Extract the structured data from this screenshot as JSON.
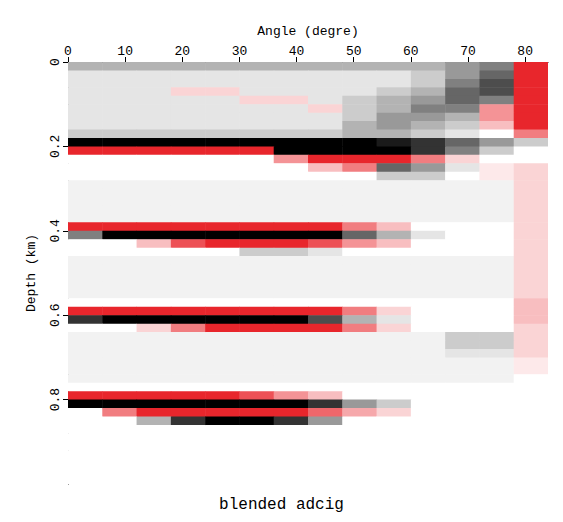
{
  "chart_data": {
    "type": "heatmap",
    "title": "blended adcig",
    "x_label": "Angle (degre)",
    "y_label": "Depth (km)",
    "xlim": [
      0,
      84
    ],
    "xticks": [
      0,
      10,
      20,
      30,
      40,
      50,
      60,
      70,
      80
    ],
    "ylim": [
      0,
      1
    ],
    "yticks": [
      0,
      0.2,
      0.4,
      0.6,
      0.8
    ],
    "grid": false,
    "color_range": [
      -1,
      1
    ],
    "x": [
      3,
      9,
      15,
      21,
      27,
      33,
      39,
      45,
      51,
      57,
      63,
      69,
      75,
      81
    ],
    "y": [
      0.01,
      0.03,
      0.05,
      0.07,
      0.09,
      0.11,
      0.13,
      0.15,
      0.17,
      0.19,
      0.21,
      0.23,
      0.25,
      0.27,
      0.29,
      0.31,
      0.33,
      0.35,
      0.37,
      0.39,
      0.41,
      0.43,
      0.45,
      0.47,
      0.49,
      0.51,
      0.53,
      0.55,
      0.57,
      0.59,
      0.61,
      0.63,
      0.65,
      0.67,
      0.69,
      0.71,
      0.73,
      0.75,
      0.77,
      0.79,
      0.81,
      0.83,
      0.85,
      0.87,
      0.89,
      0.91,
      0.93,
      0.95,
      0.97,
      0.99
    ],
    "cells": [
      [
        0.3,
        0.3,
        0.3,
        0.3,
        0.3,
        0.3,
        0.3,
        0.3,
        0.3,
        0.3,
        0.3,
        0.4,
        0.5,
        -1
      ],
      [
        0.1,
        0.1,
        0.1,
        0.1,
        0.1,
        0.1,
        0.1,
        0.1,
        0.1,
        0.1,
        0.2,
        0.4,
        0.6,
        -1
      ],
      [
        0.1,
        0.1,
        0.1,
        0.1,
        0.1,
        0.1,
        0.1,
        0.1,
        0.1,
        0.1,
        0.2,
        0.5,
        0.7,
        -1
      ],
      [
        0.1,
        0.1,
        0.1,
        -0.2,
        -0.2,
        0.1,
        0.1,
        0.1,
        0.1,
        0.2,
        0.3,
        0.6,
        0.7,
        -1
      ],
      [
        0.1,
        0.1,
        0.1,
        0.1,
        0.1,
        -0.2,
        -0.2,
        0.1,
        0.2,
        0.3,
        0.4,
        0.6,
        0.5,
        -1
      ],
      [
        0.1,
        0.1,
        0.1,
        0.1,
        0.1,
        0.1,
        0.1,
        -0.2,
        0.2,
        0.3,
        0.5,
        0.5,
        -0.5,
        -1
      ],
      [
        0.1,
        0.1,
        0.1,
        0.1,
        0.1,
        0.1,
        0.1,
        0.1,
        0.2,
        0.4,
        0.4,
        0.3,
        -0.5,
        -1
      ],
      [
        0.1,
        0.1,
        0.1,
        0.1,
        0.1,
        0.1,
        0.1,
        0.1,
        0.3,
        0.4,
        0.3,
        0.2,
        -0.3,
        -1
      ],
      [
        0.2,
        0.2,
        0.2,
        0.2,
        0.2,
        0.2,
        0.2,
        0.2,
        0.3,
        0.3,
        0.2,
        0.1,
        0,
        -0.6
      ],
      [
        1,
        1,
        1,
        1,
        1,
        1,
        1,
        1,
        1,
        0.9,
        0.8,
        0.6,
        0.4,
        0.2
      ],
      [
        -1,
        -1,
        -1,
        -1,
        -1,
        -1,
        1,
        1,
        1,
        1,
        0.8,
        0.5,
        0.2,
        0
      ],
      [
        0,
        0,
        0,
        0,
        0,
        0,
        -0.5,
        -1,
        -1,
        -1,
        -0.6,
        -0.2,
        0,
        0
      ],
      [
        0,
        0,
        0,
        0,
        0,
        0,
        0,
        -0.3,
        -0.6,
        0.6,
        0.4,
        0.1,
        -0.1,
        -0.2
      ],
      [
        0,
        0,
        0,
        0,
        0,
        0,
        0,
        0,
        0,
        0.2,
        0.2,
        0,
        -0.1,
        -0.2
      ],
      [
        0.05,
        0.05,
        0.05,
        0.05,
        0.05,
        0.05,
        0.05,
        0.05,
        0.05,
        0.05,
        0.05,
        0.05,
        0.05,
        -0.2
      ],
      [
        0.05,
        0.05,
        0.05,
        0.05,
        0.05,
        0.05,
        0.05,
        0.05,
        0.05,
        0.05,
        0.05,
        0.05,
        0.05,
        -0.2
      ],
      [
        0.05,
        0.05,
        0.05,
        0.05,
        0.05,
        0.05,
        0.05,
        0.05,
        0.05,
        0.05,
        0.05,
        0.05,
        0.05,
        -0.2
      ],
      [
        0.05,
        0.05,
        0.05,
        0.05,
        0.05,
        0.05,
        0.05,
        0.05,
        0.05,
        0.05,
        0.05,
        0.05,
        0.05,
        -0.2
      ],
      [
        0.05,
        0.05,
        0.05,
        0.05,
        0.05,
        0.05,
        0.05,
        0.05,
        0.05,
        0.05,
        0.05,
        0.05,
        0.05,
        -0.2
      ],
      [
        -1,
        -1,
        -1,
        -1,
        -1,
        -1,
        -1,
        -1,
        -0.6,
        -0.3,
        0,
        0,
        0,
        -0.2
      ],
      [
        0.5,
        1,
        1,
        1,
        1,
        1,
        1,
        1,
        0.6,
        0.3,
        0.1,
        0,
        0,
        -0.2
      ],
      [
        0,
        0,
        -0.3,
        -0.8,
        -1,
        -1,
        -1,
        -0.8,
        -0.5,
        -0.3,
        0,
        0,
        0,
        -0.2
      ],
      [
        0,
        0,
        0,
        0,
        0,
        0.2,
        0.2,
        0.1,
        0,
        0,
        0,
        0,
        0,
        -0.2
      ],
      [
        0.05,
        0.05,
        0.05,
        0.05,
        0.05,
        0.05,
        0.05,
        0.05,
        0.05,
        0.05,
        0.05,
        0.05,
        0.05,
        -0.2
      ],
      [
        0.05,
        0.05,
        0.05,
        0.05,
        0.05,
        0.05,
        0.05,
        0.05,
        0.05,
        0.05,
        0.05,
        0.05,
        0.05,
        -0.2
      ],
      [
        0.05,
        0.05,
        0.05,
        0.05,
        0.05,
        0.05,
        0.05,
        0.05,
        0.05,
        0.05,
        0.05,
        0.05,
        0.05,
        -0.2
      ],
      [
        0.05,
        0.05,
        0.05,
        0.05,
        0.05,
        0.05,
        0.05,
        0.05,
        0.05,
        0.05,
        0.05,
        0.05,
        0.05,
        -0.2
      ],
      [
        0.05,
        0.05,
        0.05,
        0.05,
        0.05,
        0.05,
        0.05,
        0.05,
        0.05,
        0.05,
        0.05,
        0.05,
        0.05,
        -0.2
      ],
      [
        0,
        0,
        0,
        0,
        0,
        0,
        0,
        0,
        0,
        0,
        0,
        0,
        0,
        -0.3
      ],
      [
        -1,
        -1,
        -1,
        -1,
        -1,
        -1,
        -1,
        -1,
        -0.6,
        -0.2,
        0,
        0,
        0,
        -0.3
      ],
      [
        0.8,
        1,
        1,
        1,
        1,
        1,
        1,
        0.7,
        0.3,
        0.1,
        0,
        0,
        0,
        -0.3
      ],
      [
        0,
        0,
        -0.2,
        -0.6,
        -1,
        -1,
        -1,
        -1,
        -0.6,
        -0.2,
        0,
        0,
        0,
        -0.2
      ],
      [
        0.05,
        0.05,
        0.05,
        0.05,
        0.05,
        0.05,
        0.05,
        0.05,
        0.05,
        0.05,
        0.05,
        0.2,
        0.2,
        -0.2
      ],
      [
        0.05,
        0.05,
        0.05,
        0.05,
        0.05,
        0.05,
        0.05,
        0.05,
        0.05,
        0.05,
        0.05,
        0.2,
        0.2,
        -0.2
      ],
      [
        0.05,
        0.05,
        0.05,
        0.05,
        0.05,
        0.05,
        0.05,
        0.05,
        0.05,
        0.05,
        0.05,
        0.1,
        0.1,
        -0.2
      ],
      [
        0.05,
        0.05,
        0.05,
        0.05,
        0.05,
        0.05,
        0.05,
        0.05,
        0.05,
        0.05,
        0.05,
        0.05,
        0.05,
        -0.1
      ],
      [
        0.05,
        0.05,
        0.05,
        0.05,
        0.05,
        0.05,
        0.05,
        0.05,
        0.05,
        0.05,
        0.05,
        0.05,
        0.05,
        -0.1
      ],
      [
        0.05,
        0.05,
        0.05,
        0.05,
        0.05,
        0.05,
        0.05,
        0.05,
        0.05,
        0.05,
        0.05,
        0.05,
        0.05,
        0
      ],
      [
        0,
        0,
        0,
        0,
        0,
        0,
        0,
        0,
        0,
        0,
        0,
        0,
        0,
        0
      ],
      [
        -1,
        -1,
        -1,
        -1,
        -1,
        -0.8,
        -0.5,
        -0.3,
        0,
        0,
        0,
        0,
        0,
        0
      ],
      [
        1,
        1,
        1,
        1,
        1,
        1,
        1,
        0.8,
        0.4,
        0.2,
        0,
        0,
        0,
        0
      ],
      [
        0,
        -0.6,
        -1,
        -1,
        -1,
        -1,
        -1,
        -0.7,
        -0.4,
        -0.2,
        0,
        0,
        0,
        0
      ],
      [
        0,
        0,
        0.3,
        0.8,
        1,
        1,
        0.8,
        0.4,
        0,
        0,
        0,
        0,
        0,
        0
      ],
      [
        0,
        0,
        0,
        0,
        0,
        0,
        0,
        0,
        0,
        0,
        0,
        0,
        0,
        0
      ],
      [
        0,
        0,
        0,
        0,
        0,
        0,
        0,
        0,
        0,
        0,
        0,
        0,
        0,
        0
      ],
      [
        0,
        0,
        0,
        0,
        0,
        0,
        0,
        0,
        0,
        0,
        0,
        0,
        0,
        0
      ],
      [
        0,
        0,
        0,
        0,
        0,
        0,
        0,
        0,
        0,
        0,
        0,
        0,
        0,
        0
      ],
      [
        0,
        0,
        0,
        0,
        0,
        0,
        0,
        0,
        0,
        0,
        0,
        0,
        0,
        0
      ],
      [
        0,
        0,
        0,
        0,
        0,
        0,
        0,
        0,
        0,
        0,
        0,
        0,
        0,
        0
      ],
      [
        0,
        0,
        0,
        0,
        0,
        0,
        0,
        0,
        0,
        0,
        0,
        0,
        0,
        0
      ]
    ]
  }
}
